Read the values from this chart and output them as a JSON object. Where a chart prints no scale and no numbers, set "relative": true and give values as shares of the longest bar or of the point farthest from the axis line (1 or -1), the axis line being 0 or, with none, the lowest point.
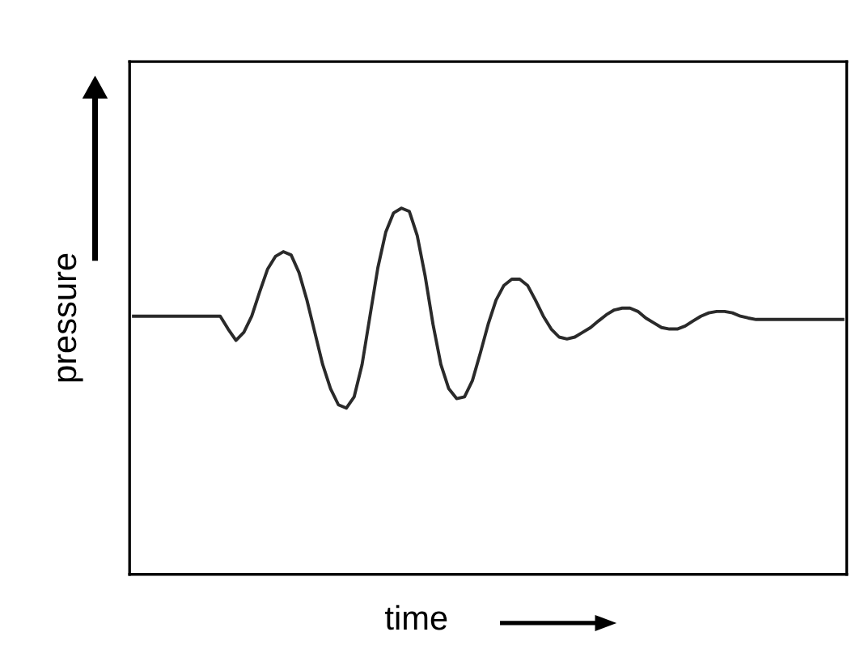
{
  "chart_data": {
    "type": "line",
    "relative": true,
    "xlabel": "time",
    "ylabel": "pressure",
    "marker": "none",
    "line_style": "solid",
    "categories": [
      null,
      null,
      null,
      null,
      null,
      null,
      null,
      null,
      null,
      null,
      null,
      null,
      null,
      null,
      null,
      null,
      null,
      null,
      null,
      null,
      null,
      null,
      null,
      null,
      null,
      null,
      null,
      null,
      null,
      null,
      null,
      null,
      null,
      null,
      null,
      null,
      null,
      null,
      null,
      null,
      null,
      null,
      null,
      null,
      null,
      null,
      null,
      null,
      null,
      null,
      null,
      null,
      null,
      null,
      null,
      null,
      null,
      null,
      null,
      null,
      null,
      null,
      null,
      null,
      null,
      null,
      null,
      null,
      null,
      null,
      null,
      null,
      null,
      null,
      null,
      null,
      null,
      null,
      null,
      null,
      null,
      null,
      null,
      null,
      null,
      null,
      null,
      null,
      null,
      null,
      null
    ],
    "series": [
      {
        "color": "#2a2a2a",
        "values": [
          0.705,
          0.705,
          0.705,
          0.705,
          0.705,
          0.705,
          0.705,
          0.705,
          0.705,
          0.705,
          0.705,
          0.705,
          0.67,
          0.639,
          0.661,
          0.705,
          0.771,
          0.833,
          0.868,
          0.881,
          0.872,
          0.824,
          0.749,
          0.661,
          0.573,
          0.507,
          0.463,
          0.454,
          0.485,
          0.573,
          0.705,
          0.837,
          0.934,
          0.987,
          1,
          0.991,
          0.925,
          0.815,
          0.683,
          0.573,
          0.507,
          0.48,
          0.485,
          0.529,
          0.604,
          0.683,
          0.749,
          0.789,
          0.806,
          0.806,
          0.789,
          0.749,
          0.705,
          0.67,
          0.648,
          0.643,
          0.648,
          0.661,
          0.674,
          0.692,
          0.709,
          0.722,
          0.727,
          0.727,
          0.718,
          0.7,
          0.687,
          0.674,
          0.67,
          0.67,
          0.678,
          0.692,
          0.705,
          0.714,
          0.718,
          0.718,
          0.714,
          0.705,
          0.7,
          0.696,
          0.696,
          0.696,
          0.696,
          0.696,
          0.696,
          0.696,
          0.696,
          0.696,
          0.696,
          0.696,
          0.696
        ]
      }
    ]
  }
}
